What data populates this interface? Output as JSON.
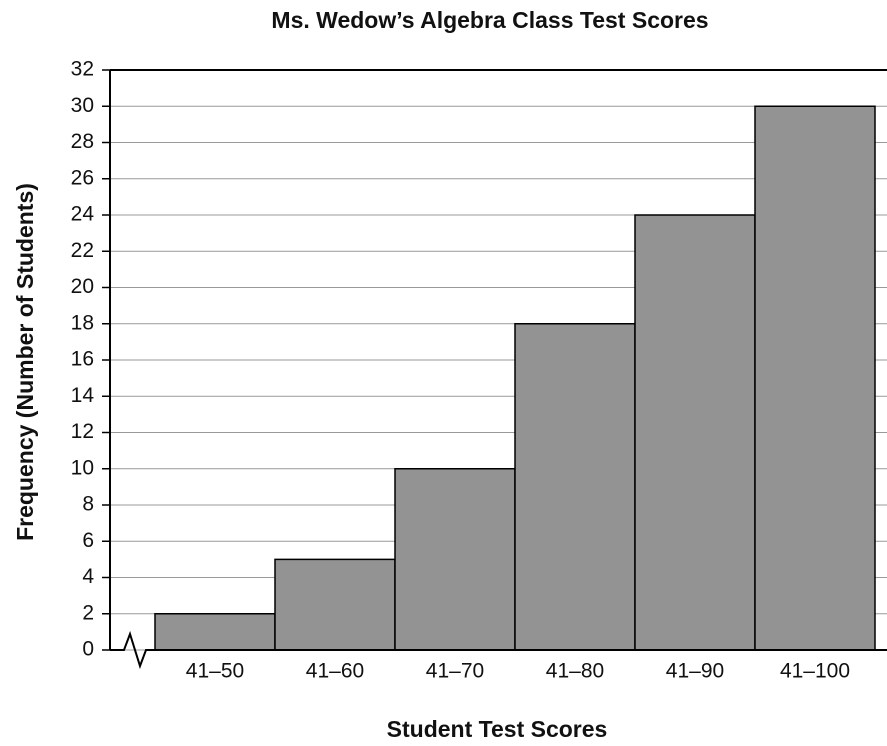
{
  "chart_data": {
    "type": "bar",
    "title": "Ms. Wedow’s Algebra Class Test Scores",
    "x_label": "Student Test Scores",
    "y_label": "Frequency (Number of Students)",
    "categories": [
      "41–50",
      "41–60",
      "41–70",
      "41–80",
      "41–90",
      "41–100"
    ],
    "values": [
      2,
      5,
      10,
      18,
      24,
      30
    ],
    "color": "#939393",
    "ylim": [
      0,
      32
    ],
    "yticks": [
      0,
      2,
      4,
      6,
      8,
      10,
      12,
      14,
      16,
      18,
      20,
      22,
      24,
      26,
      28,
      30,
      32
    ],
    "grid": true
  }
}
